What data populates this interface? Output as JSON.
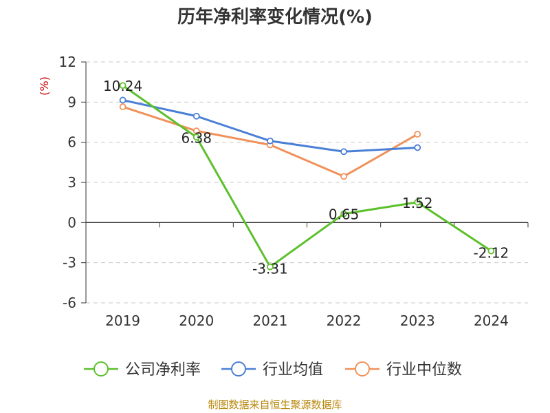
{
  "chart_data": {
    "type": "line",
    "title": "历年净利率变化情况(%)",
    "unit": "(%)",
    "categories": [
      "2019",
      "2020",
      "2021",
      "2022",
      "2023",
      "2024"
    ],
    "ylim": [
      -6,
      12
    ],
    "yticks": [
      12,
      9,
      6,
      3,
      0,
      -3,
      -6
    ],
    "ytick_labels": [
      "12",
      "9",
      "6",
      "3",
      "0",
      "-3",
      "-6"
    ],
    "grid": true,
    "legend_position": "bottom",
    "series": [
      {
        "name": "公司净利率",
        "color": "#5cc02c",
        "values": [
          10.24,
          6.38,
          -3.31,
          0.65,
          1.52,
          -2.12
        ],
        "labels": [
          "10.24",
          "6.38",
          "-3.31",
          "0.65",
          "1.52",
          "-2.12"
        ]
      },
      {
        "name": "行业均值",
        "color": "#4a7fd6",
        "values": [
          9.15,
          7.95,
          6.1,
          5.3,
          5.6,
          null
        ]
      },
      {
        "name": "行业中位数",
        "color": "#f0915a",
        "values": [
          8.65,
          6.85,
          5.8,
          3.45,
          6.6,
          null
        ]
      }
    ]
  },
  "source": "制图数据来自恒生聚源数据库"
}
